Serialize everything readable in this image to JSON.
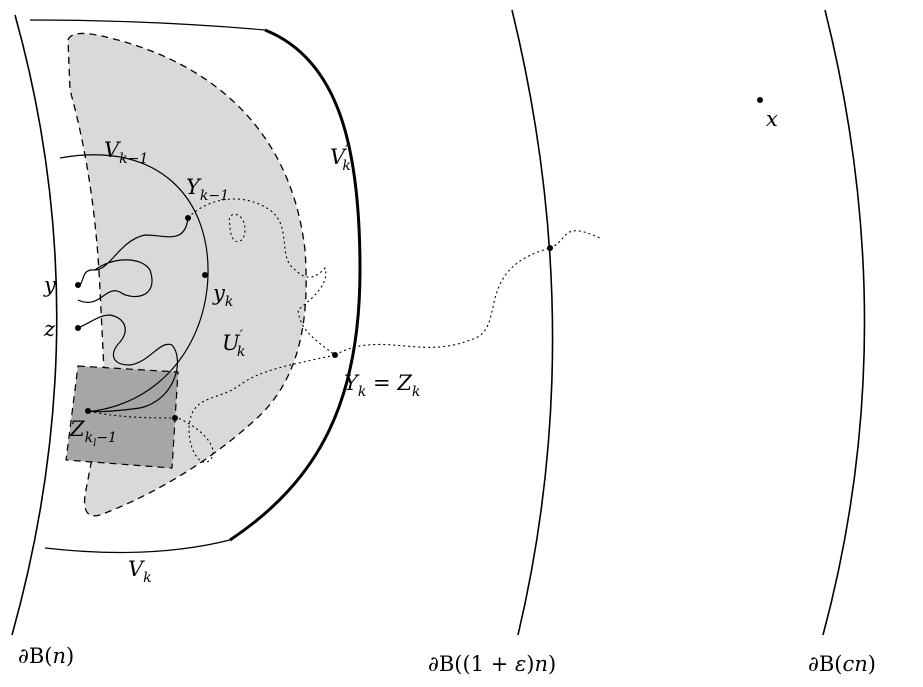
{
  "figure": {
    "labels": {
      "x": "x",
      "V_k_minus_1": {
        "base": "V",
        "sub": "k−1"
      },
      "V_k_prime": {
        "base": "V",
        "sub": "k",
        "sup": "′"
      },
      "Y_k_minus_1": {
        "base": "Y",
        "sub": "k−1"
      },
      "y_k": {
        "base": "y",
        "sub": "k"
      },
      "y": "y",
      "z": "z",
      "U_k_prime": {
        "base": "U",
        "sub": "k",
        "sup": "′"
      },
      "Y_k_eq_Z_k": {
        "left_base": "Y",
        "left_sub": "k",
        "eq": " = ",
        "right_base": "Z",
        "right_sub": "k"
      },
      "Z_k_l_minus_1": {
        "base": "Z",
        "sub": "k",
        "subsub": "l",
        "tail": "−1"
      },
      "V_k": {
        "base": "V",
        "sub": "k"
      },
      "boundary_n": {
        "partial": "∂B(",
        "arg": "n",
        "close": ")"
      },
      "boundary_1eps_n": {
        "partial": "∂B((1 + ",
        "eps": "ε",
        "mid": ")",
        "arg": "n",
        "close": ")"
      },
      "boundary_cn": {
        "partial": "∂B(",
        "arg": "cn",
        "close": ")"
      }
    },
    "colors": {
      "light_region": "#d9d9d9",
      "dark_region": "#a6a6a6",
      "stroke": "#000000"
    }
  }
}
